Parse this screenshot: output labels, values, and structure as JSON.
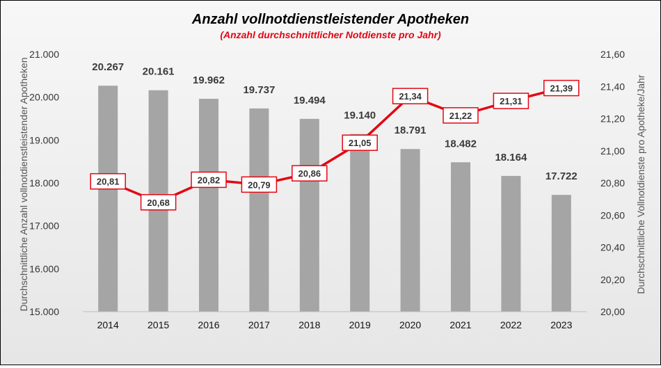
{
  "chart_data": {
    "type": "bar+line",
    "title": "Anzahl vollnotdienstleistender Apotheken",
    "subtitle": "(Anzahl durchschnittlicher Notdienste pro Jahr)",
    "ylabel": "Durchschnittliche Anzahl vollnotdienstleistender Apotheken",
    "y2label": "Durchschnittliche Vollnotdienste pro Apotheke/Jahr",
    "categories": [
      "2014",
      "2015",
      "2016",
      "2017",
      "2018",
      "2019",
      "2020",
      "2021",
      "2022",
      "2023"
    ],
    "series": [
      {
        "type": "bar",
        "axis": "left",
        "values": [
          20267,
          20161,
          19962,
          19737,
          19494,
          19140,
          18791,
          18482,
          18164,
          17722
        ],
        "labels": [
          "20.267",
          "20.161",
          "19.962",
          "19.737",
          "19.494",
          "19.140",
          "18.791",
          "18.482",
          "18.164",
          "17.722"
        ],
        "color": "#a5a5a5"
      },
      {
        "type": "line",
        "axis": "right",
        "values": [
          20.81,
          20.68,
          20.82,
          20.79,
          20.86,
          21.05,
          21.34,
          21.22,
          21.31,
          21.39
        ],
        "labels": [
          "20,81",
          "20,68",
          "20,82",
          "20,79",
          "20,86",
          "21,05",
          "21,34",
          "21,22",
          "21,31",
          "21,39"
        ],
        "color": "#e30613"
      }
    ],
    "ylim": [
      15000,
      21000
    ],
    "y2lim": [
      20.0,
      21.6
    ],
    "yticks": [
      "15.000",
      "16.000",
      "17.000",
      "18.000",
      "19.000",
      "20.000",
      "21.000"
    ],
    "y2ticks": [
      "20,00",
      "20,20",
      "20,40",
      "20,60",
      "20,80",
      "21,00",
      "21,20",
      "21,40",
      "21,60"
    ],
    "grid": false,
    "legend": "none",
    "colors": {
      "title": "#000000",
      "subtitle": "#e30613",
      "axis_text": "#333333",
      "bar_label": "#3a3a3a"
    }
  }
}
